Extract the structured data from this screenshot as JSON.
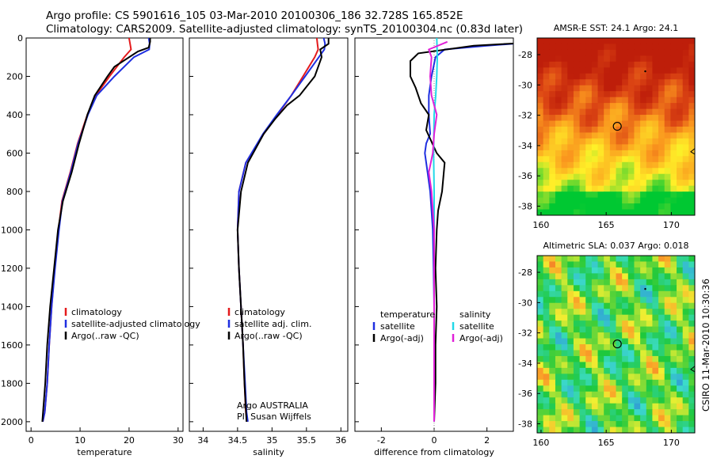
{
  "header": {
    "line1": "Argo profile: CS 5901616_105 03-Mar-2010 20100306_186 32.728S 165.852E",
    "line2": "Climatology: CARS2009. Satellite-adjusted climatology: synTS_20100304.nc (0.83d later)"
  },
  "side_label": "CSIRO 11-Mar-2010 10:30:36",
  "colors": {
    "climatology": "#e41a1c",
    "satellite": "#1f2fe0",
    "argo": "#000000",
    "salinity_satellite": "#22d8e8",
    "salinity_argo": "#e020d8"
  },
  "chart_data": [
    {
      "type": "line",
      "xlabel": "temperature",
      "ylim": [
        2050,
        0
      ],
      "xlim": [
        -1,
        31
      ],
      "xticks": [
        "0",
        "10",
        "20",
        "30"
      ],
      "yticks": [
        "0",
        "200",
        "400",
        "600",
        "800",
        "1000",
        "1200",
        "1400",
        "1600",
        "1800",
        "2000"
      ],
      "legend": [
        "climatology",
        "satellite-adjusted climatology",
        "Argo(..raw -QC)"
      ],
      "series": [
        {
          "name": "climatology",
          "x": [
            20.0,
            20.2,
            20.4,
            19.0,
            16.0,
            13.2,
            11.5,
            9.5,
            8.0,
            6.3,
            5.6,
            4.8,
            4.2,
            3.7,
            3.3,
            2.8,
            2.4
          ],
          "y": [
            0,
            30,
            60,
            100,
            200,
            300,
            400,
            550,
            700,
            850,
            1000,
            1200,
            1400,
            1600,
            1800,
            1950,
            2000
          ]
        },
        {
          "name": "satellite-adjusted climatology",
          "x": [
            24.0,
            24.2,
            24.1,
            21.0,
            17.0,
            13.4,
            11.6,
            9.6,
            8.1,
            6.4,
            5.7,
            4.9,
            4.2,
            3.7,
            3.3,
            2.8,
            2.4
          ],
          "y": [
            0,
            30,
            60,
            100,
            200,
            300,
            400,
            550,
            700,
            850,
            1000,
            1200,
            1400,
            1600,
            1800,
            1950,
            2000
          ]
        },
        {
          "name": "Argo(..raw -QC)",
          "x": [
            24.3,
            24.3,
            24.0,
            21.8,
            17.0,
            15.6,
            13.0,
            11.5,
            9.8,
            8.3,
            6.5,
            5.5,
            4.7,
            3.9,
            3.3,
            2.9,
            2.3
          ],
          "y": [
            0,
            20,
            50,
            70,
            150,
            200,
            300,
            400,
            550,
            700,
            850,
            1000,
            1200,
            1400,
            1600,
            1800,
            2000
          ]
        }
      ]
    },
    {
      "type": "line",
      "xlabel": "salinity",
      "ylim": [
        2050,
        0
      ],
      "xlim": [
        33.8,
        36.1
      ],
      "xticks": [
        "34",
        "34.5",
        "35",
        "35.5",
        "36"
      ],
      "legend": [
        "climatology",
        "satellite adj. clim.",
        "Argo(..raw -QC)"
      ],
      "annotation": [
        "Argo AUSTRALIA",
        "PI: Susan Wijffels"
      ],
      "series": [
        {
          "name": "climatology",
          "x": [
            35.65,
            35.66,
            35.67,
            35.62,
            35.45,
            35.28,
            35.08,
            34.88,
            34.62,
            34.52,
            34.5,
            34.52,
            34.55,
            34.58,
            34.6,
            34.62,
            34.64
          ],
          "y": [
            0,
            30,
            60,
            100,
            200,
            300,
            400,
            500,
            650,
            800,
            1000,
            1200,
            1400,
            1600,
            1800,
            1950,
            2000
          ]
        },
        {
          "name": "satellite adj. clim.",
          "x": [
            35.75,
            35.77,
            35.76,
            35.68,
            35.48,
            35.28,
            35.07,
            34.87,
            34.62,
            34.52,
            34.5,
            34.52,
            34.55,
            34.58,
            34.61,
            34.63,
            34.65
          ],
          "y": [
            0,
            30,
            60,
            100,
            200,
            300,
            400,
            500,
            650,
            800,
            1000,
            1200,
            1400,
            1600,
            1800,
            1950,
            2000
          ]
        },
        {
          "name": "Argo(..raw -QC)",
          "x": [
            35.82,
            35.82,
            35.7,
            35.72,
            35.62,
            35.4,
            35.22,
            35.05,
            34.88,
            34.65,
            34.55,
            34.5,
            34.52,
            34.55,
            34.58,
            34.6,
            34.63
          ],
          "y": [
            0,
            30,
            60,
            100,
            200,
            300,
            350,
            420,
            500,
            650,
            800,
            1000,
            1200,
            1400,
            1600,
            1800,
            2000
          ]
        }
      ]
    },
    {
      "type": "line",
      "xlabel": "difference from climatology",
      "ylim": [
        2050,
        0
      ],
      "xlim": [
        -3,
        3
      ],
      "xticks": [
        "-2",
        "0",
        "2"
      ],
      "legend_groups": [
        {
          "title": "temperature",
          "items": [
            "satellite",
            "Argo(-adj)"
          ]
        },
        {
          "title": "salinity",
          "items": [
            "satellite",
            "Argo(-adj)"
          ]
        }
      ],
      "series": [
        {
          "name": "temperature satellite",
          "x": [
            4.0,
            2.0,
            0.4,
            0.05,
            -0.1,
            -0.2,
            -0.2,
            -0.15,
            -0.3,
            -0.35,
            -0.25,
            -0.15,
            -0.1,
            -0.05,
            -0.02,
            0.0,
            0.0,
            0.0,
            0.0
          ],
          "y": [
            20,
            40,
            60,
            100,
            200,
            300,
            400,
            500,
            550,
            600,
            700,
            800,
            900,
            1000,
            1200,
            1400,
            1600,
            1800,
            2000
          ]
        },
        {
          "name": "temperature Argo(-adj)",
          "x": [
            4.2,
            1.5,
            -0.6,
            -0.9,
            -0.9,
            -0.7,
            -0.5,
            -0.2,
            -0.3,
            0.1,
            0.4,
            0.3,
            0.15,
            0.1,
            0.05,
            0.1,
            0.05,
            0.05,
            0.0
          ],
          "y": [
            20,
            40,
            80,
            120,
            200,
            260,
            340,
            400,
            480,
            600,
            650,
            800,
            900,
            1000,
            1200,
            1400,
            1600,
            1800,
            2000
          ]
        },
        {
          "name": "salinity satellite",
          "x": [
            0.1,
            0.12,
            0.1,
            0.06,
            0.0,
            -0.02,
            0.0,
            0.0,
            0.0,
            0.0,
            0.0,
            0.0,
            0.0
          ],
          "y": [
            0,
            100,
            200,
            300,
            400,
            600,
            800,
            1000,
            1200,
            1400,
            1600,
            1800,
            2000
          ]
        },
        {
          "name": "salinity Argo(-adj)",
          "x": [
            0.5,
            -0.2,
            -0.1,
            -0.15,
            -0.1,
            0.1,
            0.0,
            -0.05,
            -0.2,
            -0.1,
            0.0,
            0.0,
            0.0,
            0.0,
            0.0,
            0.0
          ],
          "y": [
            20,
            60,
            100,
            200,
            300,
            400,
            500,
            600,
            700,
            800,
            1000,
            1200,
            1400,
            1600,
            1800,
            2000
          ]
        }
      ]
    },
    {
      "type": "heatmap",
      "title": "AMSR-E SST: 24.1 Argo: 24.1",
      "xlim": [
        159.7,
        171.8
      ],
      "ylim": [
        -38.6,
        -26.9
      ],
      "xticks": [
        "160",
        "165",
        "170"
      ],
      "yticks": [
        "-28",
        "-30",
        "-32",
        "-34",
        "-36",
        "-38"
      ],
      "profile_lon": 165.852,
      "profile_lat": -32.728
    },
    {
      "type": "heatmap",
      "title": "Altimetric SLA: 0.037 Argo: 0.018",
      "xlim": [
        159.7,
        171.8
      ],
      "ylim": [
        -38.6,
        -26.9
      ],
      "xticks": [
        "160",
        "165",
        "170"
      ],
      "yticks": [
        "-28",
        "-30",
        "-32",
        "-34",
        "-36",
        "-38"
      ],
      "profile_lon": 165.852,
      "profile_lat": -32.728
    }
  ]
}
